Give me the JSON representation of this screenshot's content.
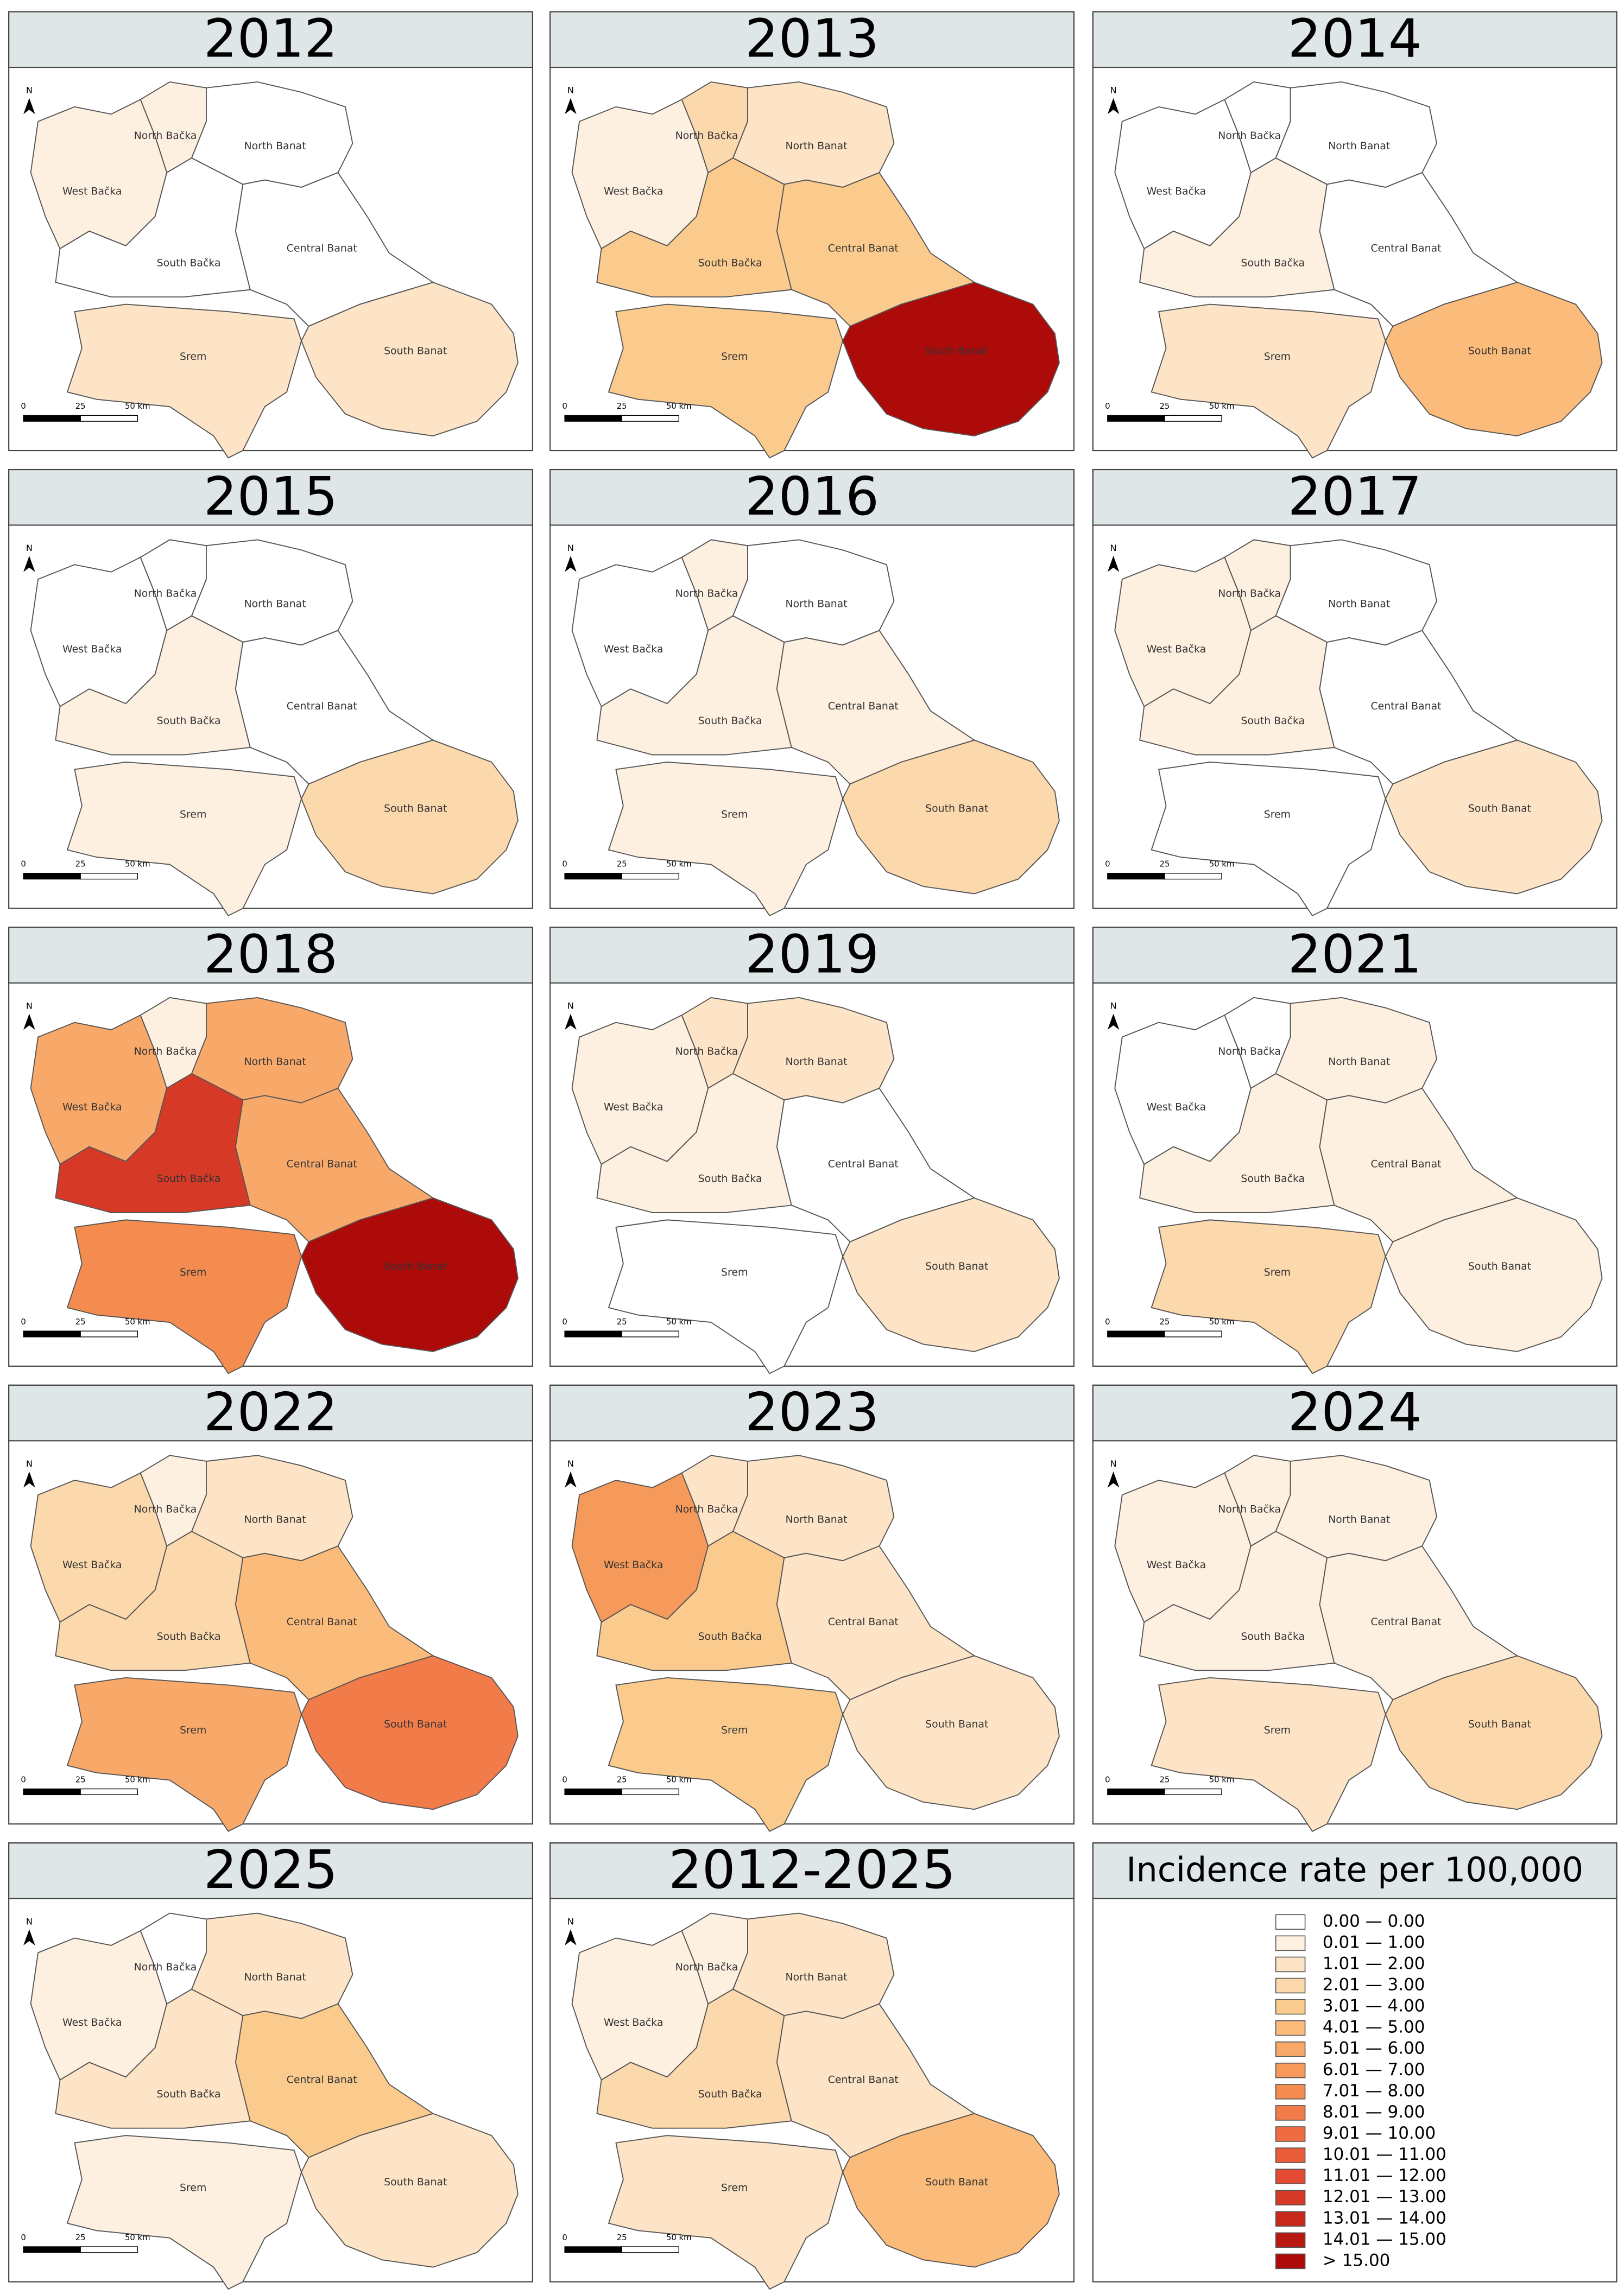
{
  "regions": [
    "West Bačka",
    "North Bačka",
    "North Banat",
    "South Bačka",
    "Central Banat",
    "Srem",
    "South Banat"
  ],
  "north": "N",
  "scale_bar": {
    "labels": [
      "0",
      "25",
      "50 km"
    ]
  },
  "panels": [
    {
      "title": "2012",
      "fills": [
        "#fef0e0",
        "#fef0e0",
        "#ffffff",
        "#ffffff",
        "#ffffff",
        "#fde4c6",
        "#fde4c6"
      ]
    },
    {
      "title": "2013",
      "fills": [
        "#fef0e0",
        "#fcd8ad",
        "#fde4c6",
        "#fbcb8e",
        "#fbcb8e",
        "#fbcb8e",
        "#ad0a0a"
      ]
    },
    {
      "title": "2014",
      "fills": [
        "#ffffff",
        "#ffffff",
        "#ffffff",
        "#fef0e0",
        "#ffffff",
        "#fde4c6",
        "#fbbb7a"
      ]
    },
    {
      "title": "2015",
      "fills": [
        "#ffffff",
        "#ffffff",
        "#ffffff",
        "#fef0e0",
        "#ffffff",
        "#fef0e0",
        "#fcd8ad"
      ]
    },
    {
      "title": "2016",
      "fills": [
        "#ffffff",
        "#fef0e0",
        "#ffffff",
        "#fef0e0",
        "#fef0e0",
        "#fef0e0",
        "#fcd8ad"
      ]
    },
    {
      "title": "2017",
      "fills": [
        "#fef0e0",
        "#fef0e0",
        "#ffffff",
        "#fef0e0",
        "#ffffff",
        "#ffffff",
        "#fde4c6"
      ]
    },
    {
      "title": "2018",
      "fills": [
        "#f8a869",
        "#fef0e0",
        "#f8a869",
        "#d63a27",
        "#f8a869",
        "#f48c50",
        "#ad0a0a"
      ]
    },
    {
      "title": "2019",
      "fills": [
        "#fef0e0",
        "#fde4c6",
        "#fde4c6",
        "#fef0e0",
        "#ffffff",
        "#ffffff",
        "#fde4c6"
      ]
    },
    {
      "title": "2021",
      "fills": [
        "#ffffff",
        "#ffffff",
        "#fef0e0",
        "#fef0e0",
        "#fef0e0",
        "#fcd8ad",
        "#fef0e0"
      ]
    },
    {
      "title": "2022",
      "fills": [
        "#fcd8ad",
        "#fef0e0",
        "#fde4c6",
        "#fcd8ad",
        "#fbbb7a",
        "#f8a869",
        "#f27b4a"
      ]
    },
    {
      "title": "2023",
      "fills": [
        "#f69a5c",
        "#fde4c6",
        "#fde4c6",
        "#fbcb8e",
        "#fde4c6",
        "#fbcb8e",
        "#fde4c6"
      ]
    },
    {
      "title": "2024",
      "fills": [
        "#fef0e0",
        "#fef0e0",
        "#fef0e0",
        "#fef0e0",
        "#fef0e0",
        "#fde4c6",
        "#fcd8ad"
      ]
    },
    {
      "title": "2025",
      "fills": [
        "#fef0e0",
        "#ffffff",
        "#fde4c6",
        "#fde4c6",
        "#fbcb8e",
        "#fef0e0",
        "#fde4c6"
      ]
    },
    {
      "title": "2012-2025",
      "fills": [
        "#fef0e0",
        "#fef0e0",
        "#fde4c6",
        "#fcd8ad",
        "#fde4c6",
        "#fde4c6",
        "#fbbb7a"
      ]
    }
  ],
  "legend": {
    "title": "Incidence rate per 100,000",
    "items": [
      {
        "label": "0.00 — 0.00",
        "color": "#ffffff"
      },
      {
        "label": "0.01 — 1.00",
        "color": "#fef0e0"
      },
      {
        "label": "1.01 — 2.00",
        "color": "#fde4c6"
      },
      {
        "label": "2.01 — 3.00",
        "color": "#fcd8ad"
      },
      {
        "label": "3.01 — 4.00",
        "color": "#fbcb8e"
      },
      {
        "label": "4.01 — 5.00",
        "color": "#fbbb7a"
      },
      {
        "label": "5.01 — 6.00",
        "color": "#f8a869"
      },
      {
        "label": "6.01 — 7.00",
        "color": "#f69a5c"
      },
      {
        "label": "7.01 — 8.00",
        "color": "#f48c50"
      },
      {
        "label": "8.01 — 9.00",
        "color": "#f27b4a"
      },
      {
        "label": "9.01 — 10.00",
        "color": "#ef6b42"
      },
      {
        "label": "10.01 — 11.00",
        "color": "#ea5b3a"
      },
      {
        "label": "11.01 — 12.00",
        "color": "#e24a31"
      },
      {
        "label": "12.01 — 13.00",
        "color": "#d63a27"
      },
      {
        "label": "13.01 — 14.00",
        "color": "#c8291c"
      },
      {
        "label": "14.01 — 15.00",
        "color": "#b81a12"
      },
      {
        "label": "> 15.00",
        "color": "#ad0a0a"
      }
    ]
  }
}
